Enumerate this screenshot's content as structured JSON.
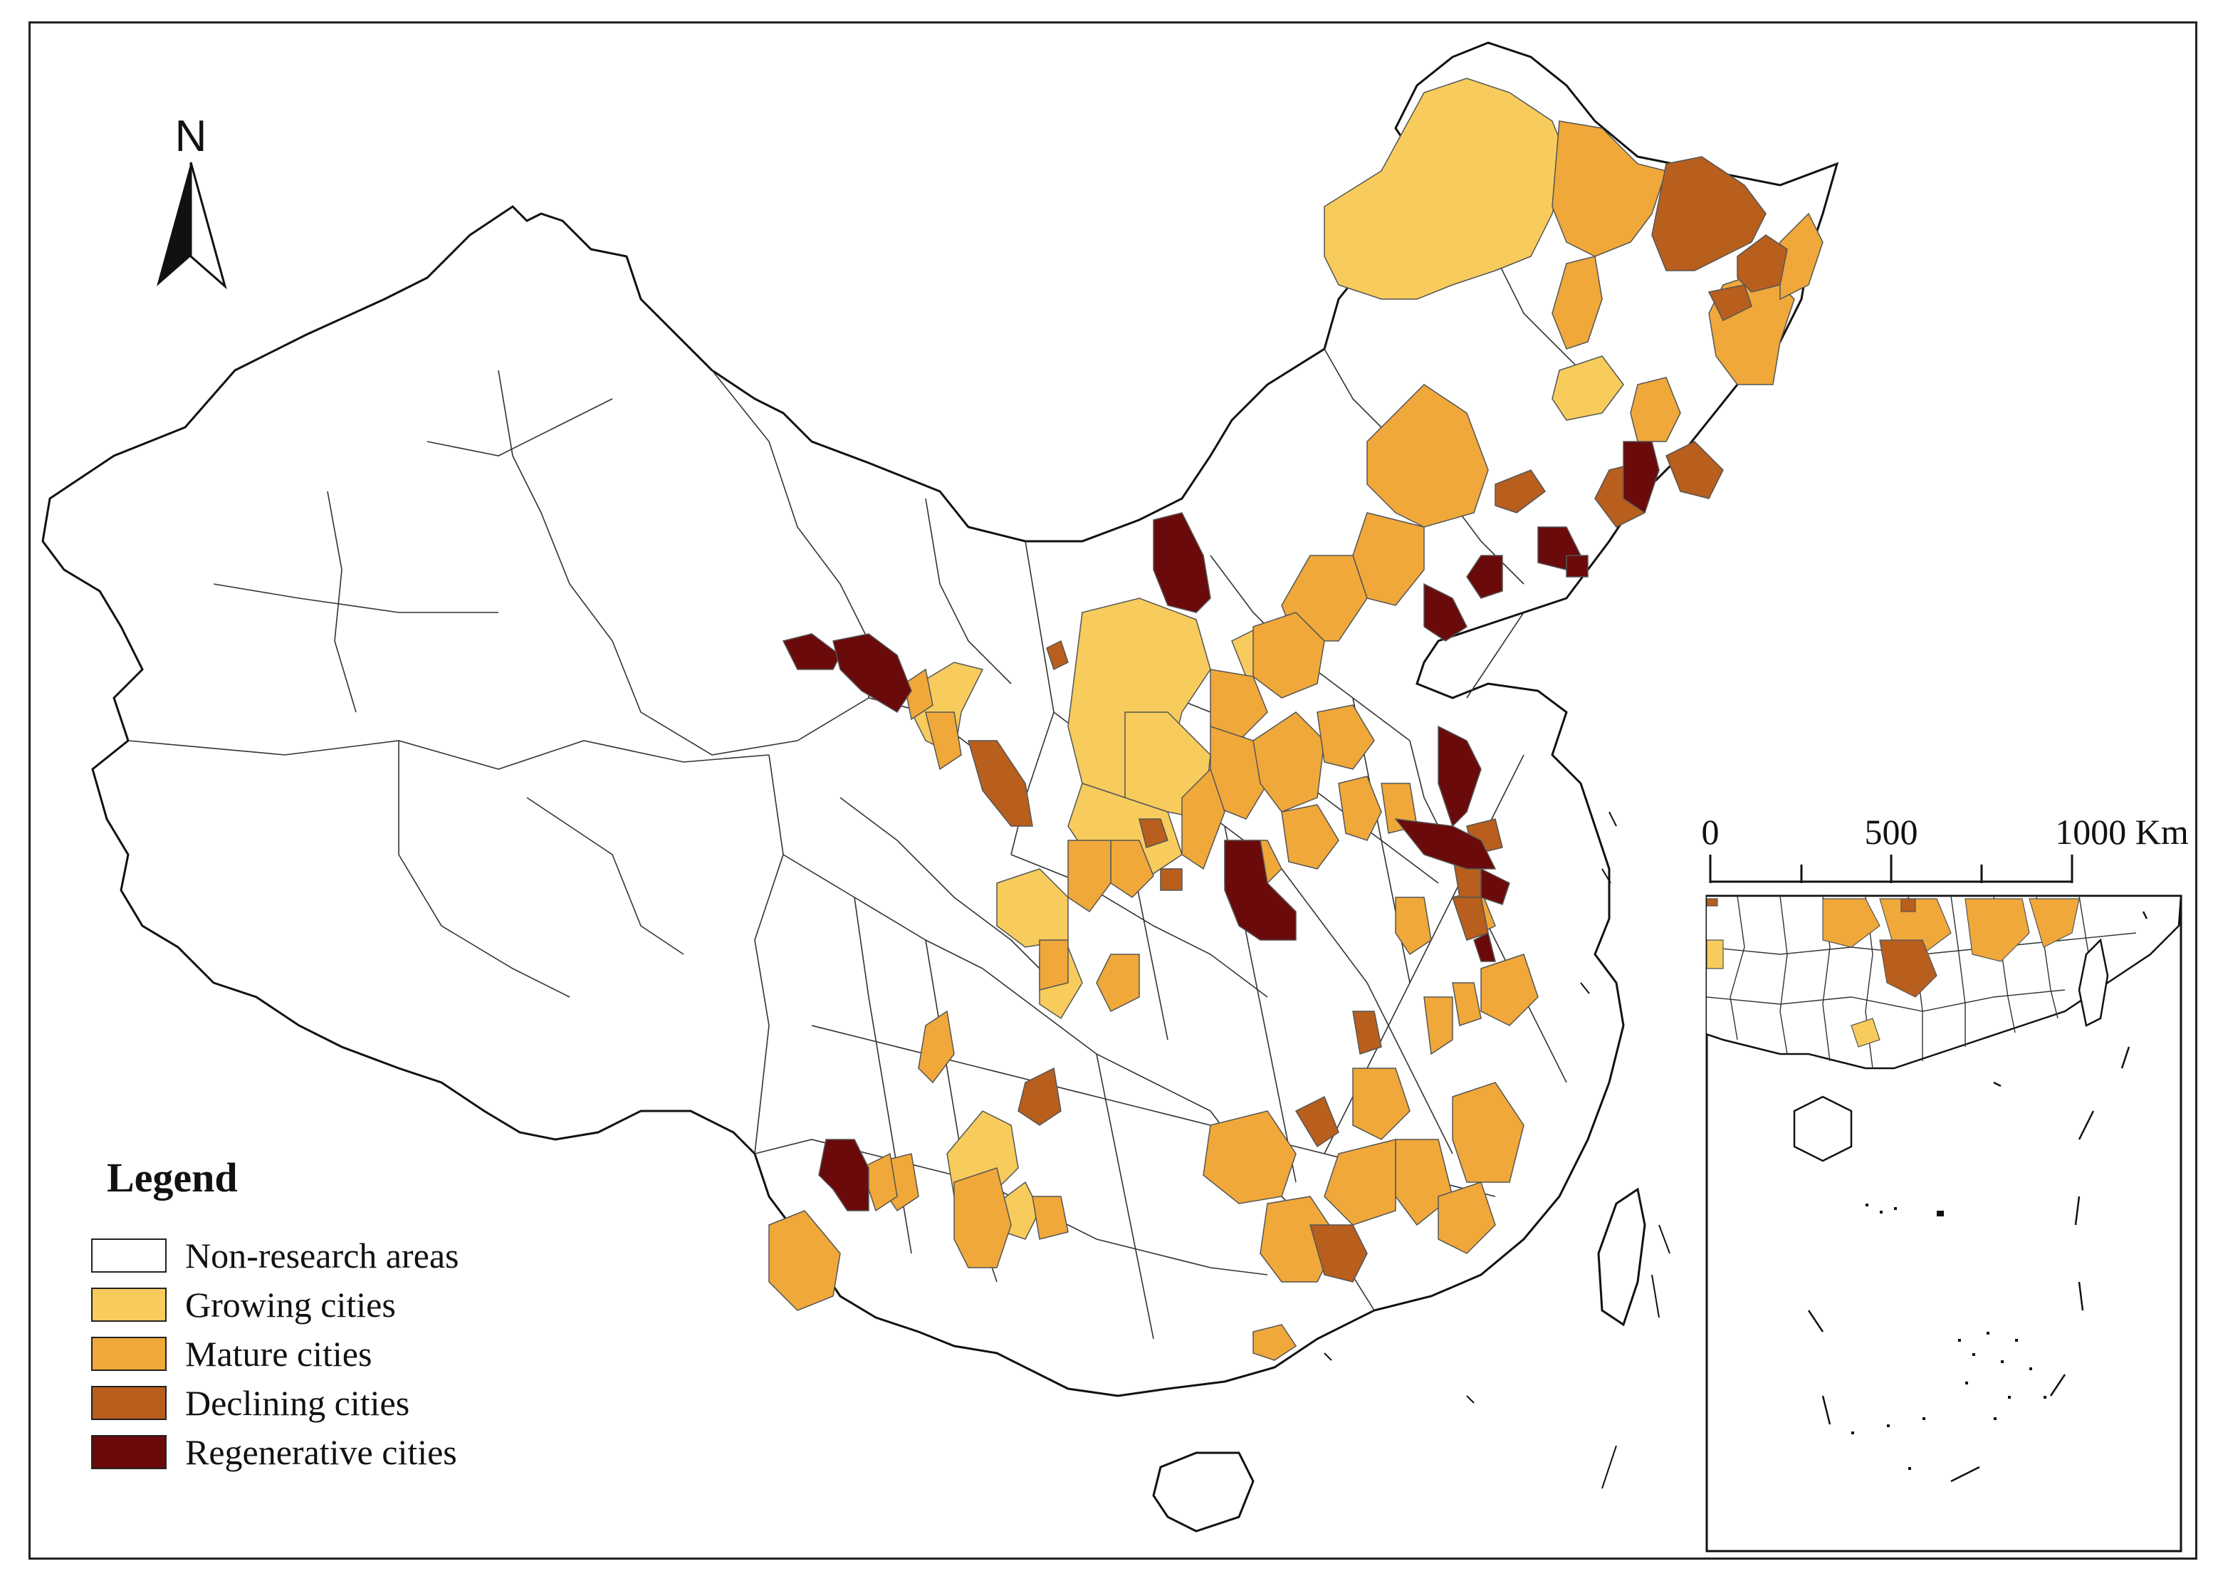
{
  "north_arrow": {
    "letter": "N"
  },
  "legend": {
    "title": "Legend",
    "items": [
      {
        "label": "Non-research areas",
        "color": "#ffffff"
      },
      {
        "label": "Growing cities",
        "color": "#f7cc5c"
      },
      {
        "label": "Mature cities",
        "color": "#f0a83a"
      },
      {
        "label": "Declining cities",
        "color": "#b85f1e"
      },
      {
        "label": "Regenerative cities",
        "color": "#6b0a0a"
      }
    ]
  },
  "scale_bar": {
    "ticks": [
      "0",
      "500",
      "1000 Km"
    ]
  },
  "inset": {
    "name": "South China Sea inset"
  }
}
